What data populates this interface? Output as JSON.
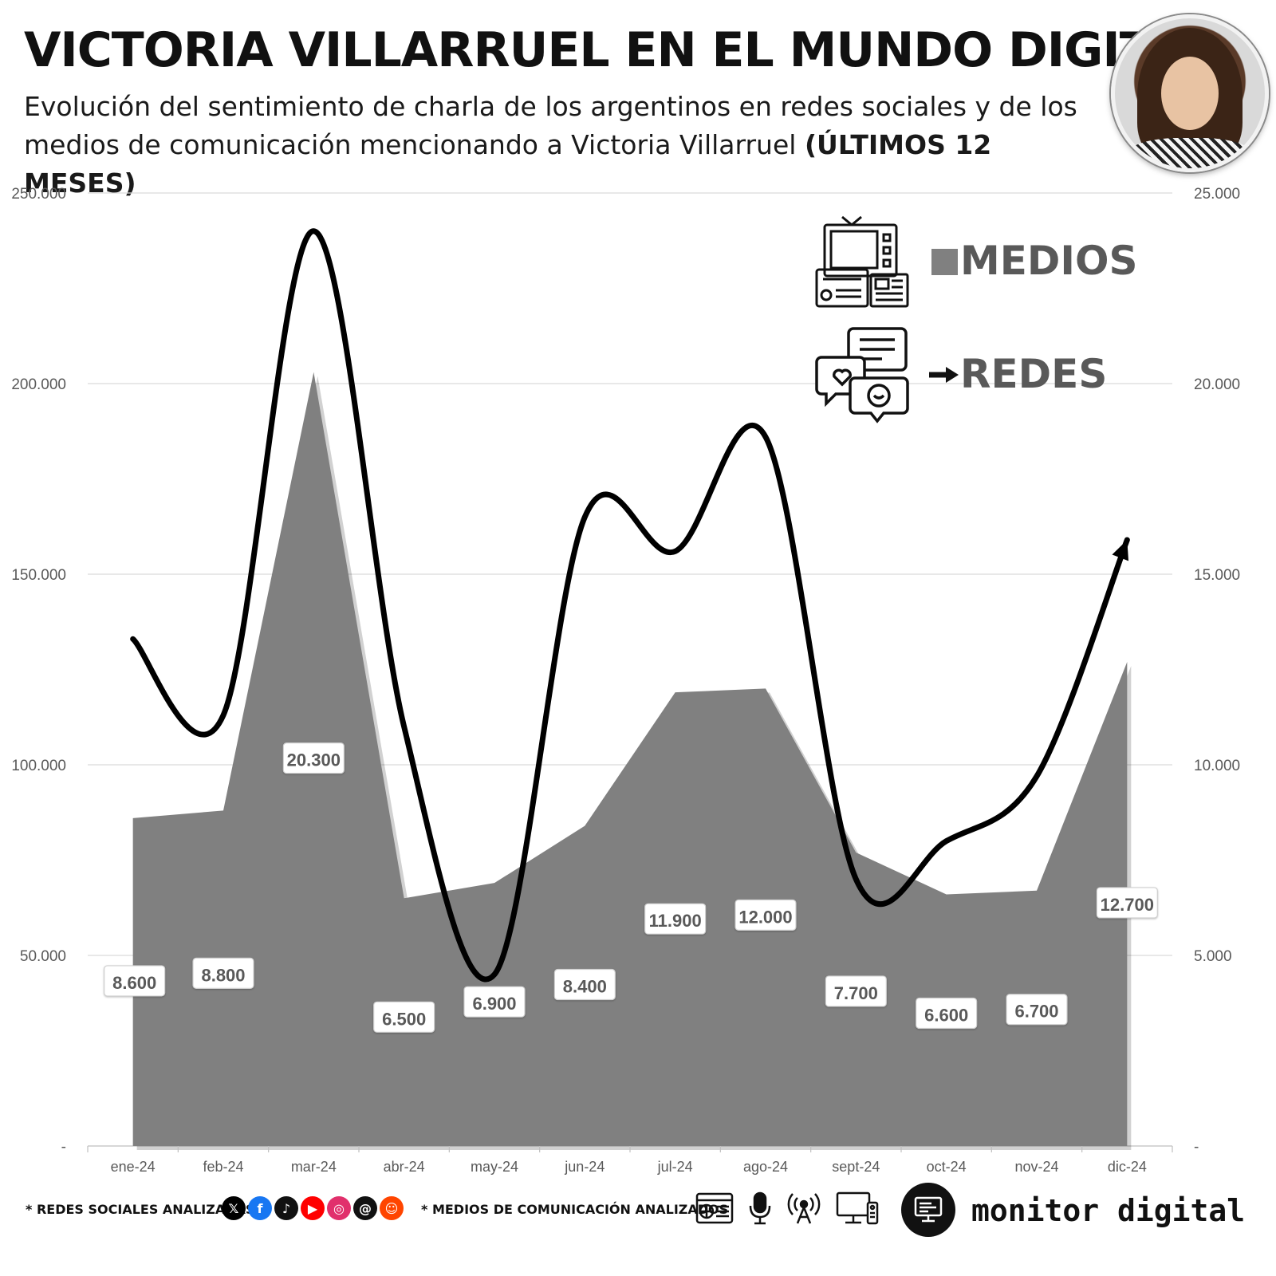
{
  "header": {
    "title": "VICTORIA VILLARRUEL EN EL MUNDO DIGITAL",
    "subtitle": "Evolución del sentimiento de charla de los argentinos en redes sociales y de los medios de comunicación mencionando a Victoria Villarruel",
    "subtitle_bold": "(ÚLTIMOS 12 MESES)",
    "avatar_icon": "portrait-photo"
  },
  "chart_data": {
    "type": "area",
    "categories": [
      "ene-24",
      "feb-24",
      "mar-24",
      "abr-24",
      "may-24",
      "jun-24",
      "jul-24",
      "ago-24",
      "sept-24",
      "oct-24",
      "nov-24",
      "dic-24"
    ],
    "series": [
      {
        "name": "MEDIOS",
        "chart_type": "area",
        "axis": "right",
        "color": "#808080",
        "values": [
          8600,
          8800,
          20300,
          6500,
          6900,
          8400,
          11900,
          12000,
          7700,
          6600,
          6700,
          12700
        ],
        "labels": [
          "8.600",
          "8.800",
          "20.300",
          "6.500",
          "6.900",
          "8.400",
          "11.900",
          "12.000",
          "7.700",
          "6.600",
          "6.700",
          "12.700"
        ]
      },
      {
        "name": "REDES",
        "chart_type": "line",
        "axis": "left",
        "color": "#000000",
        "values": [
          133000,
          113000,
          240000,
          110000,
          45000,
          165000,
          156000,
          186000,
          70000,
          80000,
          97000,
          159000
        ]
      }
    ],
    "y_left": {
      "ylim": [
        0,
        250000
      ],
      "ticks": [
        "-",
        "50.000",
        "100.000",
        "150.000",
        "200.000",
        "250.000"
      ]
    },
    "y_right": {
      "ylim": [
        0,
        25000
      ],
      "ticks": [
        "-",
        "5.000",
        "10.000",
        "15.000",
        "20.000",
        "25.000"
      ]
    },
    "grid": true,
    "legend": {
      "placement": "top-right",
      "items": [
        {
          "label": "MEDIOS",
          "marker": "■",
          "icon": "tv-radio-newspaper-icon"
        },
        {
          "label": "REDES",
          "marker": "➔",
          "icon": "chat-bubbles-icon"
        }
      ]
    }
  },
  "footer": {
    "social_label": "* REDES SOCIALES ANALIZADAS",
    "social_icons": [
      {
        "name": "x-icon",
        "glyph": "𝕏",
        "color": "#000000"
      },
      {
        "name": "facebook-icon",
        "glyph": "f",
        "color": "#1877f2"
      },
      {
        "name": "tiktok-icon",
        "glyph": "♪",
        "color": "#111111"
      },
      {
        "name": "youtube-icon",
        "glyph": "▶",
        "color": "#ff0000"
      },
      {
        "name": "instagram-icon",
        "glyph": "◎",
        "color": "#e1306c"
      },
      {
        "name": "threads-icon",
        "glyph": "@",
        "color": "#111111"
      },
      {
        "name": "reddit-icon",
        "glyph": "☺",
        "color": "#ff4500"
      }
    ],
    "media_label": "* MEDIOS DE COMUNICACIÓN ANALIZADOS",
    "media_icons": [
      "web-news-icon",
      "microphone-icon",
      "radio-tower-icon",
      "tv-icon"
    ],
    "brand": {
      "name": "monitor digital",
      "logo_icon": "computer-monitor-icon"
    }
  }
}
